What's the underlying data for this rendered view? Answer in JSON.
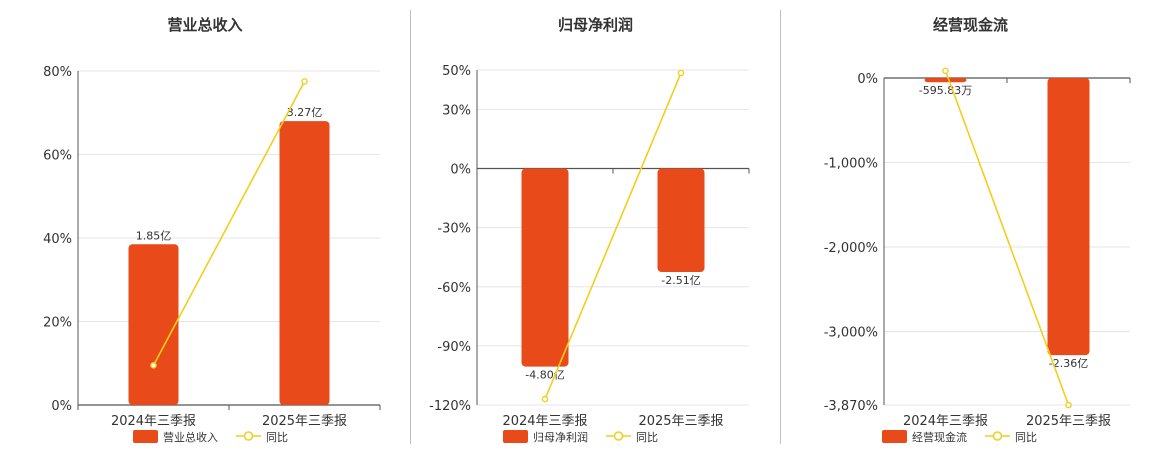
{
  "colors": {
    "bar": "#e84a1a",
    "line": "#f2cf1d",
    "grid": "#e6e6e6",
    "axis": "#555555"
  },
  "chart_data": [
    {
      "type": "bar",
      "title": "营业总收入",
      "categories": [
        "2024年三季报",
        "2025年三季报"
      ],
      "series": [
        {
          "name": "营业总收入",
          "type": "bar",
          "values": [
            38.5,
            68.0
          ],
          "labels": [
            "1.85亿",
            "3.27亿"
          ]
        },
        {
          "name": "同比",
          "type": "line",
          "values": [
            9.5,
            77.5
          ]
        }
      ],
      "ylim": [
        0,
        80
      ],
      "yticks": [
        0,
        20,
        40,
        60,
        80
      ],
      "ytick_labels": [
        "0%",
        "20%",
        "40%",
        "60%",
        "80%"
      ],
      "legend": "bottom",
      "grid": true
    },
    {
      "type": "bar",
      "title": "归母净利润",
      "categories": [
        "2024年三季报",
        "2025年三季报"
      ],
      "series": [
        {
          "name": "归母净利润",
          "type": "bar",
          "values": [
            -100.5,
            -52.5
          ],
          "labels": [
            "-4.80亿",
            "-2.51亿"
          ]
        },
        {
          "name": "同比",
          "type": "line",
          "values": [
            -117.0,
            48.5
          ]
        }
      ],
      "ylim": [
        -120,
        50
      ],
      "yticks": [
        -120,
        -90,
        -60,
        -30,
        0,
        30,
        50
      ],
      "ytick_labels": [
        "-120%",
        "-90%",
        "-60%",
        "-30%",
        "0%",
        "30%",
        "50%"
      ],
      "legend": "bottom",
      "grid": true
    },
    {
      "type": "bar",
      "title": "经营现金流",
      "categories": [
        "2024年三季报",
        "2025年三季报"
      ],
      "series": [
        {
          "name": "经营现金流",
          "type": "bar",
          "values": [
            -50,
            -3280
          ],
          "labels": [
            "-595.83万",
            "-2.36亿"
          ]
        },
        {
          "name": "同比",
          "type": "line",
          "values": [
            85,
            -3870
          ]
        }
      ],
      "ylim": [
        -3870,
        0
      ],
      "yticks": [
        -3870,
        -3000,
        -2000,
        -1000,
        0
      ],
      "ytick_labels": [
        "-3,870%",
        "-3,000%",
        "-2,000%",
        "-1,000%",
        "0%"
      ],
      "legend": "bottom",
      "grid": true
    }
  ]
}
